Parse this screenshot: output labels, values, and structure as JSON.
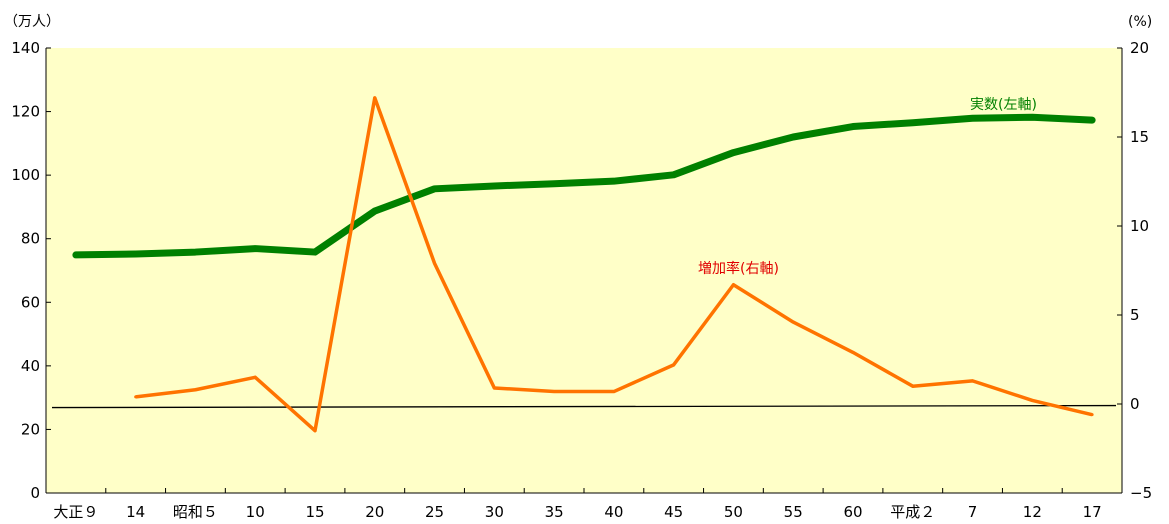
{
  "chart_data": {
    "type": "line",
    "categories": [
      "大正９",
      "14",
      "昭和５",
      "10",
      "15",
      "20",
      "25",
      "30",
      "35",
      "40",
      "45",
      "50",
      "55",
      "60",
      "平成２",
      "7",
      "12",
      "17"
    ],
    "left_axis": {
      "unit": "（万人）",
      "ylim": [
        0,
        140
      ],
      "ticks": [
        0,
        20,
        40,
        60,
        80,
        100,
        120,
        140
      ]
    },
    "right_axis": {
      "unit": "(%)",
      "ylim": [
        -5,
        20
      ],
      "ticks": [
        "−5",
        "0",
        "5",
        "10",
        "15",
        "20"
      ]
    },
    "series": [
      {
        "name": "実数(左軸)",
        "axis": "left",
        "color": "#008000",
        "values": [
          74.9,
          75.2,
          75.8,
          76.9,
          75.8,
          88.7,
          95.7,
          96.6,
          97.3,
          98.1,
          100.1,
          107.1,
          112.0,
          115.3,
          116.5,
          117.9,
          118.2,
          117.3
        ]
      },
      {
        "name": "増加率(右軸)",
        "axis": "right",
        "color": "#ff7300",
        "values": [
          null,
          0.4,
          0.8,
          1.5,
          -1.5,
          17.2,
          7.9,
          0.9,
          0.7,
          0.7,
          2.2,
          6.7,
          4.6,
          2.9,
          1.0,
          1.3,
          0.2,
          -0.6
        ]
      }
    ],
    "reference_line": {
      "axis": "right",
      "value": -0.2
    },
    "plot_background": "#ffffc8",
    "grid": false,
    "legend": "inline-labels"
  }
}
